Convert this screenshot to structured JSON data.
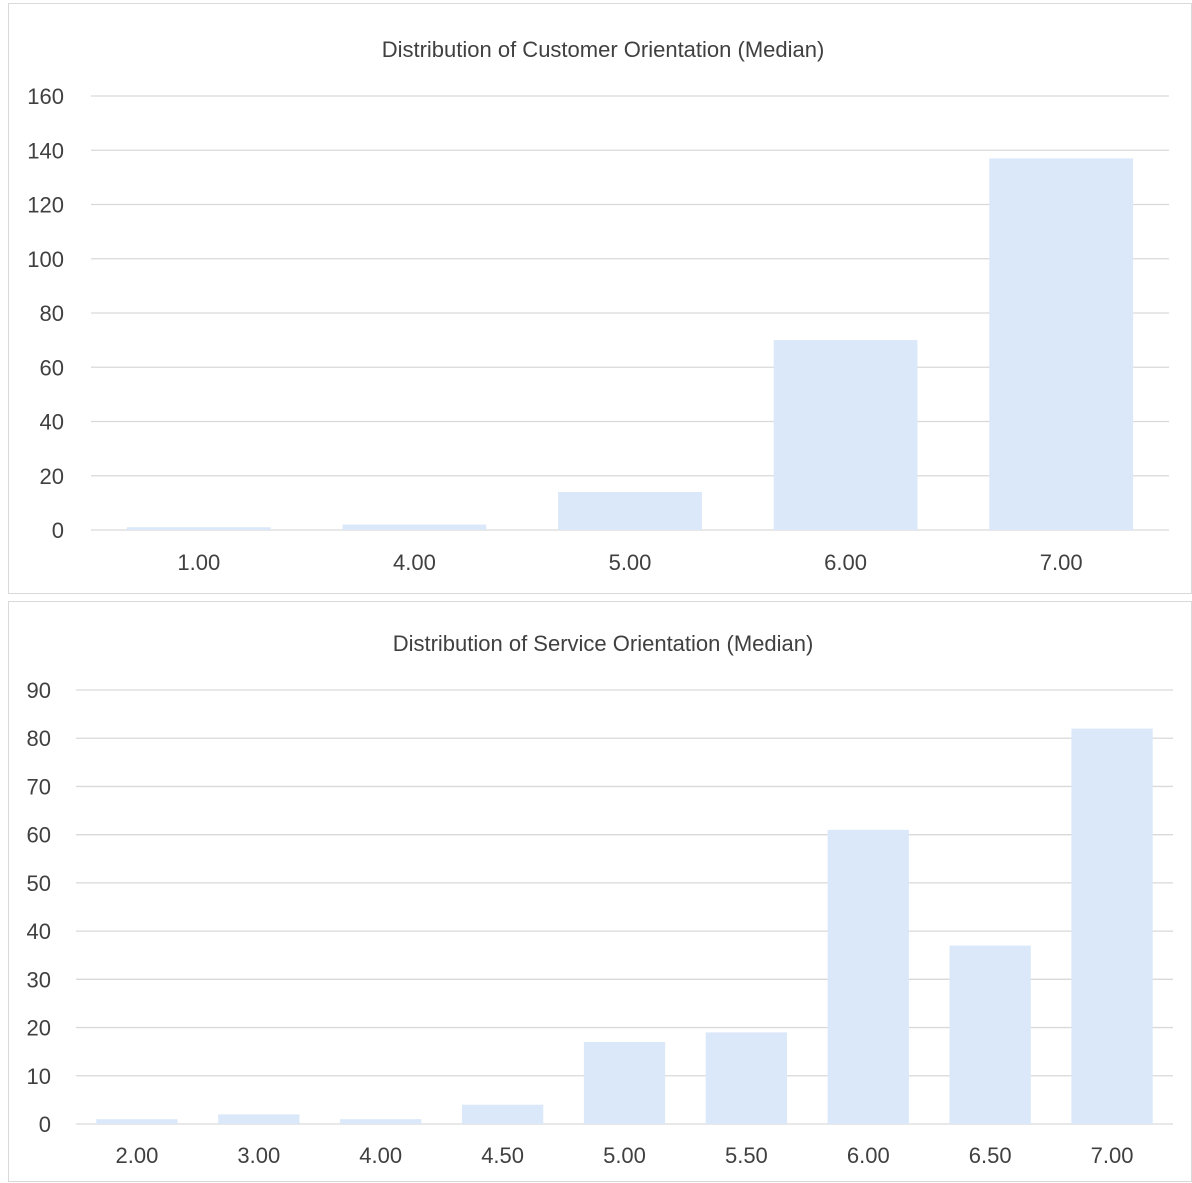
{
  "colors": {
    "bar": "#dae8f9",
    "grid": "#d9d9d9",
    "text": "#404040"
  },
  "chart_data": [
    {
      "type": "bar",
      "title": "Distribution of Customer Orientation (Median)",
      "categories": [
        "1.00",
        "4.00",
        "5.00",
        "6.00",
        "7.00"
      ],
      "values": [
        1,
        2,
        14,
        70,
        137
      ],
      "ylim": [
        0,
        160
      ],
      "yticks": [
        0,
        20,
        40,
        60,
        80,
        100,
        120,
        140,
        160
      ],
      "xlabel": "",
      "ylabel": "",
      "grid": true,
      "legend": "none"
    },
    {
      "type": "bar",
      "title": "Distribution of Service Orientation (Median)",
      "categories": [
        "2.00",
        "3.00",
        "4.00",
        "4.50",
        "5.00",
        "5.50",
        "6.00",
        "6.50",
        "7.00"
      ],
      "values": [
        1,
        2,
        1,
        4,
        17,
        19,
        61,
        37,
        82
      ],
      "ylim": [
        0,
        90
      ],
      "yticks": [
        0,
        10,
        20,
        30,
        40,
        50,
        60,
        70,
        80,
        90
      ],
      "xlabel": "",
      "ylabel": "",
      "grid": true,
      "legend": "none"
    }
  ]
}
